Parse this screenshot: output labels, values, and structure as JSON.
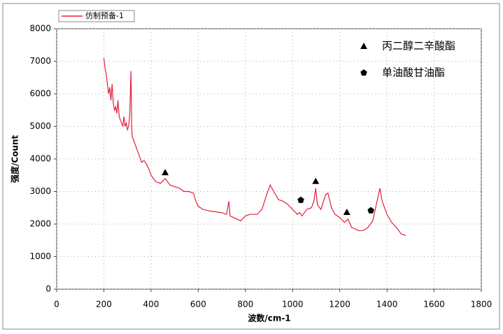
{
  "chart_data": {
    "type": "line",
    "x_label": "波数/cm-1",
    "y_label": "强度/Count",
    "xlim": [
      0,
      1800
    ],
    "xticks": [
      0,
      200,
      400,
      600,
      800,
      1000,
      1200,
      1400,
      1600,
      1800
    ],
    "ylim": [
      0,
      8000
    ],
    "yticks": [
      0,
      1000,
      2000,
      3000,
      4000,
      5000,
      6000,
      7000,
      8000
    ],
    "grid": true,
    "series": [
      {
        "name": "仿制预备-1",
        "type": "line",
        "color": "#e0203a",
        "x": [
          200,
          205,
          210,
          215,
          220,
          225,
          230,
          235,
          240,
          245,
          250,
          255,
          260,
          265,
          270,
          275,
          280,
          285,
          290,
          295,
          300,
          305,
          310,
          315,
          318,
          320,
          330,
          340,
          350,
          360,
          370,
          380,
          390,
          400,
          420,
          440,
          460,
          470,
          480,
          500,
          520,
          540,
          560,
          580,
          590,
          600,
          620,
          650,
          700,
          720,
          730,
          735,
          750,
          780,
          800,
          820,
          850,
          870,
          890,
          905,
          920,
          940,
          960,
          980,
          1000,
          1020,
          1030,
          1040,
          1060,
          1080,
          1090,
          1098,
          1105,
          1120,
          1140,
          1150,
          1165,
          1180,
          1200,
          1220,
          1235,
          1250,
          1280,
          1300,
          1320,
          1340,
          1355,
          1370,
          1380,
          1400,
          1420,
          1440,
          1460,
          1480
        ],
        "values": [
          7100,
          6800,
          6600,
          6300,
          6000,
          6200,
          5800,
          6300,
          5700,
          5500,
          5600,
          5400,
          5800,
          5300,
          5200,
          5100,
          5000,
          5300,
          5000,
          5100,
          4900,
          5000,
          5400,
          6700,
          5000,
          4700,
          4500,
          4300,
          4100,
          3900,
          3950,
          3850,
          3700,
          3500,
          3300,
          3250,
          3400,
          3300,
          3200,
          3150,
          3100,
          3000,
          3000,
          2950,
          2700,
          2550,
          2450,
          2400,
          2350,
          2300,
          2700,
          2250,
          2200,
          2100,
          2250,
          2300,
          2300,
          2450,
          2900,
          3200,
          3000,
          2750,
          2700,
          2600,
          2450,
          2300,
          2350,
          2250,
          2450,
          2500,
          2700,
          3100,
          2600,
          2450,
          2900,
          2950,
          2500,
          2300,
          2200,
          2050,
          2150,
          1900,
          1800,
          1800,
          1900,
          2100,
          2600,
          3100,
          2700,
          2300,
          2050,
          1900,
          1700,
          1650
        ]
      },
      {
        "name": "丙二醇二辛酸酯",
        "type": "scatter",
        "marker": "triangle",
        "color": "#000000",
        "x": [
          460,
          1098,
          1230
        ],
        "values": [
          3500,
          3230,
          2280
        ]
      },
      {
        "name": "单油酸甘油酯",
        "type": "scatter",
        "marker": "pentagon",
        "color": "#000000",
        "x": [
          1035,
          1332
        ],
        "values": [
          2650,
          2330
        ]
      }
    ]
  }
}
